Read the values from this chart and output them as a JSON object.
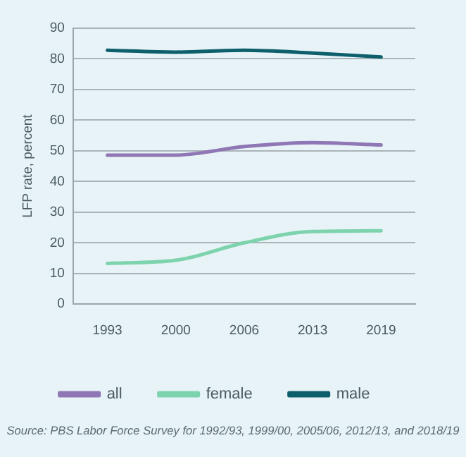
{
  "chart_data": {
    "type": "line",
    "categories": [
      "1993",
      "2000",
      "2006",
      "2013",
      "2019"
    ],
    "series": [
      {
        "name": "all",
        "color": "#8f76b4",
        "values": [
          48.6,
          48.6,
          51.4,
          52.7,
          51.9
        ]
      },
      {
        "name": "female",
        "color": "#7dd3ad",
        "values": [
          13.3,
          14.3,
          20.0,
          23.7,
          23.9
        ]
      },
      {
        "name": "male",
        "color": "#0d5f6b",
        "values": [
          82.8,
          82.2,
          82.8,
          81.9,
          80.6
        ]
      }
    ],
    "ylabel": "LFP rate, percent",
    "ylim": [
      0,
      90
    ],
    "yticks": [
      0,
      10,
      20,
      30,
      40,
      50,
      60,
      70,
      80,
      90
    ],
    "grid": "y",
    "legend": "bottom",
    "marker": "none",
    "line_style": "solid",
    "annotations": [
      "Source: PBS Labor Force Survey for 1992/93, 1999/00, 2005/06, 2012/13, and 2018/19"
    ]
  }
}
